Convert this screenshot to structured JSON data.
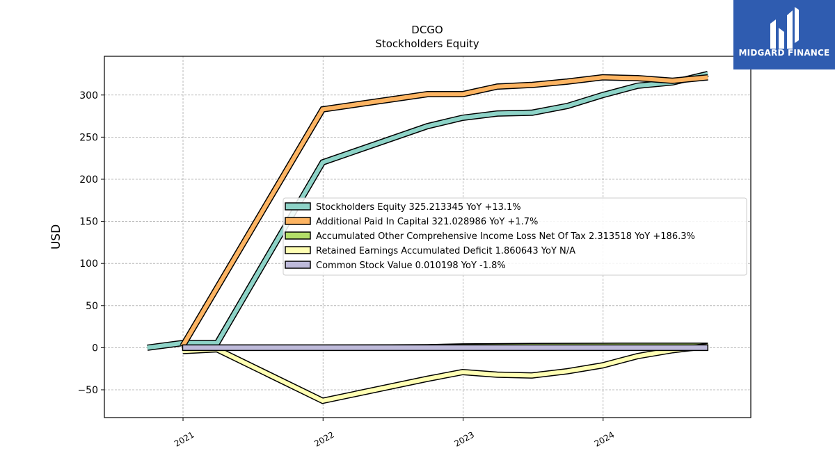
{
  "chart_data": {
    "type": "line",
    "title": "DCGO",
    "subtitle": "Stockholders  Equity",
    "ylabel": "USD",
    "xlabel": "",
    "x_ticks": [
      "2021",
      "2022",
      "2023",
      "2024"
    ],
    "y_ticks": [
      -50,
      0,
      50,
      100,
      150,
      200,
      250,
      300
    ],
    "y_tick_labels": [
      "−50",
      "0",
      "50",
      "100",
      "150",
      "200",
      "250",
      "300"
    ],
    "xlim": [
      "2020-06-10",
      "2025-01-20"
    ],
    "ylim": [
      -83,
      346
    ],
    "grid": true,
    "legend_position": "center-right",
    "series": [
      {
        "name": "Stockholders Equity",
        "legend_label": "Stockholders Equity  325.213345 YoY +13.1%",
        "color": "#8dd3c7",
        "points": [
          [
            "2020-09-30",
            0
          ],
          [
            "2020-12-31",
            5.5
          ],
          [
            "2021-03-31",
            5.5
          ],
          [
            "2021-12-31",
            220
          ],
          [
            "2022-09-30",
            263
          ],
          [
            "2022-12-31",
            273
          ],
          [
            "2023-03-31",
            278
          ],
          [
            "2023-06-30",
            279
          ],
          [
            "2023-09-30",
            287
          ],
          [
            "2023-12-31",
            300
          ],
          [
            "2024-03-31",
            311
          ],
          [
            "2024-06-30",
            315
          ],
          [
            "2024-09-30",
            325
          ]
        ]
      },
      {
        "name": "Additional Paid In Capital",
        "legend_label": "Additional Paid In Capital  321.028986 YoY +1.7%",
        "color": "#fdb462",
        "points": [
          [
            "2020-12-31",
            2
          ],
          [
            "2021-12-31",
            283
          ],
          [
            "2022-09-30",
            301
          ],
          [
            "2022-12-31",
            301
          ],
          [
            "2023-03-31",
            310
          ],
          [
            "2023-06-30",
            312
          ],
          [
            "2023-09-30",
            316
          ],
          [
            "2023-12-31",
            321
          ],
          [
            "2024-03-31",
            320
          ],
          [
            "2024-06-30",
            317
          ],
          [
            "2024-09-30",
            321
          ]
        ]
      },
      {
        "name": "Accumulated Other Comprehensive Income Loss Net Of Tax",
        "legend_label": "Accumulated Other Comprehensive Income Loss Net Of Tax  2.313518 YoY +186.3%",
        "color": "#b3de69",
        "points": [
          [
            "2020-12-31",
            0
          ],
          [
            "2021-12-31",
            0
          ],
          [
            "2022-09-30",
            0.5
          ],
          [
            "2022-12-31",
            1.5
          ],
          [
            "2023-06-30",
            2
          ],
          [
            "2023-12-31",
            2.2
          ],
          [
            "2024-09-30",
            2.3
          ]
        ]
      },
      {
        "name": "Retained Earnings Accumulated Deficit",
        "legend_label": "Retained Earnings Accumulated Deficit  1.860643 YoY N/A",
        "color": "#ffffb3",
        "points": [
          [
            "2020-12-31",
            -4
          ],
          [
            "2021-03-31",
            -2
          ],
          [
            "2021-12-31",
            -63
          ],
          [
            "2022-09-30",
            -37
          ],
          [
            "2022-12-31",
            -29
          ],
          [
            "2023-03-31",
            -32
          ],
          [
            "2023-06-30",
            -33
          ],
          [
            "2023-09-30",
            -28
          ],
          [
            "2023-12-31",
            -21
          ],
          [
            "2024-03-31",
            -10
          ],
          [
            "2024-06-30",
            -3
          ],
          [
            "2024-09-30",
            1.9
          ]
        ]
      },
      {
        "name": "Common Stock Value",
        "legend_label": "Common Stock Value  0.010198 YoY -1.8%",
        "color": "#bebada",
        "band": true,
        "points": [
          [
            "2020-12-31",
            0
          ],
          [
            "2024-09-30",
            0
          ]
        ]
      }
    ]
  },
  "logo": {
    "text": "MIDGARD FINANCE",
    "bg_color": "#2f5cb0"
  }
}
